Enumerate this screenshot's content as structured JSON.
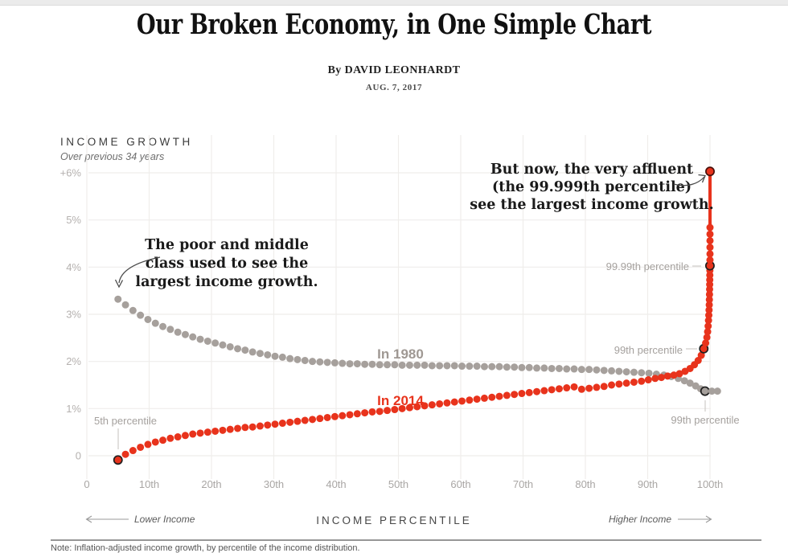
{
  "header": {
    "title": "Our Broken Economy, in One Simple Chart",
    "byline": "By DAVID LEONHARDT",
    "date": "AUG. 7, 2017"
  },
  "annotations": {
    "left": {
      "lines": [
        "The poor and middle",
        "class used to see the",
        "largest income growth."
      ]
    },
    "right": {
      "lines": [
        "But now, the very affluent",
        "(the 99.999th percentile)",
        "see the largest income growth."
      ]
    }
  },
  "point_labels": {
    "p5": "5th percentile",
    "p9999": "99.99th percentile",
    "p99_red": "99th percentile",
    "p99_gray": "99th percentile"
  },
  "footer": {
    "note": "Note: Inflation-adjusted income growth, by percentile of the income distribution."
  },
  "colors": {
    "red": "#e8331c",
    "gray": "#a6a09c",
    "grid": "#efedeb",
    "ring": "#1f1f1f",
    "ring_top": "#4a100a"
  },
  "chart_data": {
    "type": "scatter",
    "title": "INCOME GROWTH",
    "subtitle": "Over previous 34 years",
    "xlabel": "INCOME PERCENTILE",
    "xlabel_left": "Lower Income",
    "xlabel_right": "Higher Income",
    "xlim": [
      0,
      100
    ],
    "ylim": [
      -0.5,
      6.5
    ],
    "grid": true,
    "x_ticks": [
      {
        "label": "0",
        "p": 0
      },
      {
        "label": "10th",
        "p": 10
      },
      {
        "label": "20th",
        "p": 20
      },
      {
        "label": "30th",
        "p": 30
      },
      {
        "label": "40th",
        "p": 40
      },
      {
        "label": "50th",
        "p": 50
      },
      {
        "label": "60th",
        "p": 60
      },
      {
        "label": "70th",
        "p": 70
      },
      {
        "label": "80th",
        "p": 80
      },
      {
        "label": "90th",
        "p": 90
      },
      {
        "label": "100th",
        "p": 100
      }
    ],
    "y_ticks": [
      {
        "label": "0",
        "v": 0
      },
      {
        "label": "1%",
        "v": 1
      },
      {
        "label": "2%",
        "v": 2
      },
      {
        "label": "3%",
        "v": 3
      },
      {
        "label": "4%",
        "v": 4
      },
      {
        "label": "5%",
        "v": 5
      },
      {
        "label": "+6%",
        "v": 6
      }
    ],
    "series": [
      {
        "name": "In 1980",
        "color": "#a6a09c",
        "points": [
          [
            5,
            3.32,
            "ring-none"
          ],
          [
            6.2,
            3.2
          ],
          [
            7.4,
            3.08
          ],
          [
            8.6,
            2.98
          ],
          [
            9.8,
            2.89
          ],
          [
            11,
            2.81
          ],
          [
            12.2,
            2.74
          ],
          [
            13.4,
            2.68
          ],
          [
            14.6,
            2.62
          ],
          [
            15.8,
            2.57
          ],
          [
            17,
            2.52
          ],
          [
            18.2,
            2.47
          ],
          [
            19.4,
            2.43
          ],
          [
            20.6,
            2.39
          ],
          [
            21.8,
            2.35
          ],
          [
            23,
            2.31
          ],
          [
            24.2,
            2.27
          ],
          [
            25.4,
            2.24
          ],
          [
            26.6,
            2.2
          ],
          [
            27.8,
            2.17
          ],
          [
            29,
            2.14
          ],
          [
            30.2,
            2.11
          ],
          [
            31.4,
            2.09
          ],
          [
            32.6,
            2.06
          ],
          [
            33.8,
            2.04
          ],
          [
            35,
            2.02
          ],
          [
            36.2,
            2.0
          ],
          [
            37.4,
            1.99
          ],
          [
            38.6,
            1.98
          ],
          [
            39.8,
            1.97
          ],
          [
            41,
            1.96
          ],
          [
            42.2,
            1.95
          ],
          [
            43.4,
            1.95
          ],
          [
            44.6,
            1.94
          ],
          [
            45.8,
            1.94
          ],
          [
            47,
            1.93
          ],
          [
            48.2,
            1.93
          ],
          [
            49.4,
            1.93
          ],
          [
            50.6,
            1.92
          ],
          [
            51.8,
            1.92
          ],
          [
            53,
            1.92
          ],
          [
            54.2,
            1.92
          ],
          [
            55.4,
            1.91
          ],
          [
            56.6,
            1.91
          ],
          [
            57.8,
            1.91
          ],
          [
            59,
            1.91
          ],
          [
            60.2,
            1.9
          ],
          [
            61.4,
            1.9
          ],
          [
            62.6,
            1.9
          ],
          [
            63.8,
            1.89
          ],
          [
            65,
            1.89
          ],
          [
            66.2,
            1.89
          ],
          [
            67.4,
            1.88
          ],
          [
            68.6,
            1.88
          ],
          [
            69.8,
            1.87
          ],
          [
            71,
            1.87
          ],
          [
            72.2,
            1.86
          ],
          [
            73.4,
            1.86
          ],
          [
            74.6,
            1.85
          ],
          [
            75.8,
            1.85
          ],
          [
            77,
            1.84
          ],
          [
            78.2,
            1.84
          ],
          [
            79.4,
            1.83
          ],
          [
            80.6,
            1.83
          ],
          [
            81.8,
            1.82
          ],
          [
            83,
            1.81
          ],
          [
            84.2,
            1.8
          ],
          [
            85.4,
            1.79
          ],
          [
            86.6,
            1.78
          ],
          [
            87.8,
            1.77
          ],
          [
            89,
            1.76
          ],
          [
            90.2,
            1.75
          ],
          [
            91.4,
            1.73
          ],
          [
            92.6,
            1.71
          ],
          [
            93.8,
            1.68
          ],
          [
            94.9,
            1.64
          ],
          [
            95.9,
            1.59
          ],
          [
            96.8,
            1.54
          ],
          [
            97.7,
            1.48
          ],
          [
            98.5,
            1.42
          ],
          [
            99.2,
            1.37,
            "ring"
          ],
          [
            100.3,
            1.37
          ],
          [
            101.2,
            1.37
          ]
        ]
      },
      {
        "name": "In 2014",
        "color": "#e8331c",
        "points": [
          [
            5,
            -0.09,
            "ring"
          ],
          [
            6.2,
            0.03
          ],
          [
            7.4,
            0.11
          ],
          [
            8.6,
            0.18
          ],
          [
            9.8,
            0.24
          ],
          [
            11,
            0.29
          ],
          [
            12.2,
            0.33
          ],
          [
            13.4,
            0.37
          ],
          [
            14.6,
            0.4
          ],
          [
            15.8,
            0.43
          ],
          [
            17,
            0.46
          ],
          [
            18.2,
            0.48
          ],
          [
            19.4,
            0.5
          ],
          [
            20.6,
            0.52
          ],
          [
            21.8,
            0.54
          ],
          [
            23,
            0.56
          ],
          [
            24.2,
            0.58
          ],
          [
            25.4,
            0.6
          ],
          [
            26.6,
            0.61
          ],
          [
            27.8,
            0.63
          ],
          [
            29,
            0.65
          ],
          [
            30.2,
            0.67
          ],
          [
            31.4,
            0.69
          ],
          [
            32.6,
            0.71
          ],
          [
            33.8,
            0.73
          ],
          [
            35,
            0.75
          ],
          [
            36.2,
            0.77
          ],
          [
            37.4,
            0.79
          ],
          [
            38.6,
            0.81
          ],
          [
            39.8,
            0.83
          ],
          [
            41,
            0.85
          ],
          [
            42.2,
            0.87
          ],
          [
            43.4,
            0.89
          ],
          [
            44.6,
            0.91
          ],
          [
            45.8,
            0.93
          ],
          [
            47,
            0.94
          ],
          [
            48.2,
            0.96
          ],
          [
            49.4,
            0.98
          ],
          [
            50.6,
            1.0
          ],
          [
            51.8,
            1.02
          ],
          [
            53,
            1.04
          ],
          [
            54.2,
            1.06
          ],
          [
            55.4,
            1.08
          ],
          [
            56.6,
            1.1
          ],
          [
            57.8,
            1.12
          ],
          [
            59,
            1.14
          ],
          [
            60.2,
            1.16
          ],
          [
            61.4,
            1.18
          ],
          [
            62.6,
            1.2
          ],
          [
            63.8,
            1.22
          ],
          [
            65,
            1.24
          ],
          [
            66.2,
            1.26
          ],
          [
            67.4,
            1.28
          ],
          [
            68.6,
            1.3
          ],
          [
            69.8,
            1.32
          ],
          [
            71,
            1.34
          ],
          [
            72.2,
            1.36
          ],
          [
            73.4,
            1.38
          ],
          [
            74.6,
            1.4
          ],
          [
            75.8,
            1.42
          ],
          [
            77,
            1.44
          ],
          [
            78.2,
            1.46
          ],
          [
            79.4,
            1.41
          ],
          [
            80.6,
            1.43
          ],
          [
            81.8,
            1.45
          ],
          [
            83,
            1.47
          ],
          [
            84.2,
            1.5
          ],
          [
            85.4,
            1.52
          ],
          [
            86.6,
            1.54
          ],
          [
            87.8,
            1.56
          ],
          [
            89,
            1.58
          ],
          [
            90.1,
            1.61
          ],
          [
            91.2,
            1.64
          ],
          [
            92.2,
            1.66
          ],
          [
            93.2,
            1.69
          ],
          [
            94.2,
            1.71
          ],
          [
            95.1,
            1.74
          ],
          [
            96,
            1.79
          ],
          [
            96.8,
            1.85
          ],
          [
            97.5,
            1.93
          ],
          [
            98.1,
            2.02
          ],
          [
            98.6,
            2.13
          ],
          [
            99,
            2.27,
            "ring"
          ],
          [
            99.3,
            2.39
          ],
          [
            99.5,
            2.51
          ],
          [
            99.62,
            2.63
          ],
          [
            99.7,
            2.75
          ],
          [
            99.76,
            2.87
          ],
          [
            99.81,
            2.98
          ],
          [
            99.85,
            3.09
          ],
          [
            99.88,
            3.2
          ],
          [
            99.9,
            3.31
          ],
          [
            99.92,
            3.42
          ],
          [
            99.935,
            3.53
          ],
          [
            99.95,
            3.63
          ],
          [
            99.96,
            3.73
          ],
          [
            99.97,
            3.83
          ],
          [
            99.98,
            3.93
          ],
          [
            99.99,
            4.03,
            "ring"
          ],
          [
            99.995,
            4.15
          ],
          [
            100,
            4.28
          ],
          [
            100,
            4.42
          ],
          [
            100,
            4.56
          ],
          [
            100,
            4.7
          ],
          [
            100,
            4.84
          ],
          [
            100,
            6.03,
            "ring-top"
          ]
        ],
        "spike_line": {
          "p": 100,
          "from": 4.84,
          "to": 6.03
        }
      }
    ],
    "legend_inline": {
      "s1980": "In 1980",
      "s2014": "In 2014"
    }
  }
}
